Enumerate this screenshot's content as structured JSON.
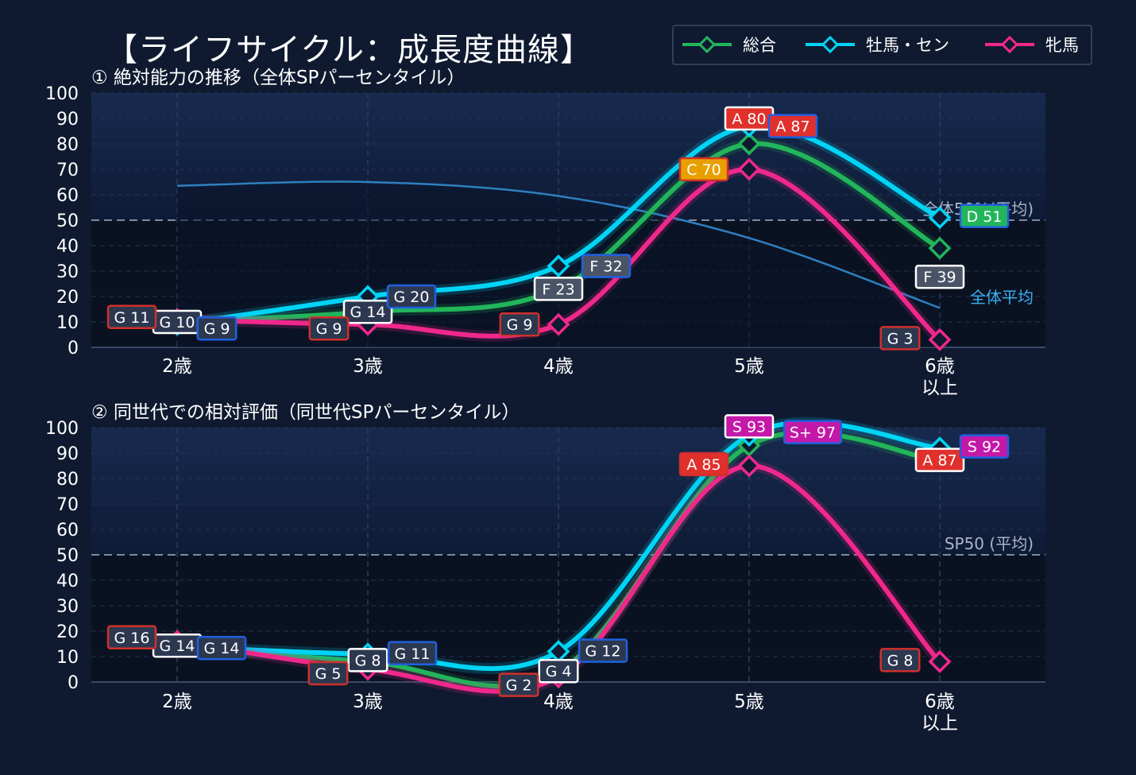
{
  "title": "【ライフサイクル：成長度曲線】",
  "legend": [
    {
      "name": "総合",
      "color": "#22b55a"
    },
    {
      "name": "牡馬・セン",
      "color": "#00d4f5"
    },
    {
      "name": "牝馬",
      "color": "#f0288c"
    }
  ],
  "chart_data": [
    {
      "type": "line",
      "title": "① 絶対能力の推移（全体SPパーセンタイル）",
      "categories": [
        "2歳",
        "3歳",
        "4歳",
        "5歳",
        "6歳\n以上"
      ],
      "ylim": [
        0,
        100
      ],
      "yticks": [
        0,
        10,
        20,
        30,
        40,
        50,
        60,
        70,
        80,
        90,
        100
      ],
      "grid": true,
      "legend_position": "top-right",
      "reference_line": {
        "y": 50,
        "label": "全体50%(平均)"
      },
      "baseline": {
        "label": "全体平均",
        "values": [
          63.5,
          65,
          59.5,
          43,
          15.5
        ]
      },
      "series": [
        {
          "name": "総合",
          "color": "#22b55a",
          "values": [
            10,
            14,
            23,
            80,
            39
          ],
          "labels": [
            "G 10",
            "G 14",
            "F 23",
            "A 80",
            "F 39"
          ]
        },
        {
          "name": "牡馬・セン",
          "color": "#00d4f5",
          "values": [
            9,
            20,
            32,
            87,
            51
          ],
          "labels": [
            "G 9",
            "G 20",
            "F 32",
            "A 87",
            "D 51"
          ]
        },
        {
          "name": "牝馬",
          "color": "#f0288c",
          "values": [
            11,
            9,
            9,
            70,
            3
          ],
          "labels": [
            "G 11",
            "G 9",
            "G 9",
            "C 70",
            "G 3"
          ]
        }
      ]
    },
    {
      "type": "line",
      "title": "② 同世代での相対評価（同世代SPパーセンタイル）",
      "categories": [
        "2歳",
        "3歳",
        "4歳",
        "5歳",
        "6歳\n以上"
      ],
      "ylim": [
        0,
        100
      ],
      "yticks": [
        0,
        10,
        20,
        30,
        40,
        50,
        60,
        70,
        80,
        90,
        100
      ],
      "grid": true,
      "reference_line": {
        "y": 50,
        "label": "SP50 (平均)"
      },
      "series": [
        {
          "name": "総合",
          "color": "#22b55a",
          "values": [
            14,
            8,
            4,
            93,
            87
          ],
          "labels": [
            "G 14",
            "G 8",
            "G 4",
            "S 93",
            "A 87"
          ]
        },
        {
          "name": "牡馬・セン",
          "color": "#00d4f5",
          "values": [
            14,
            11,
            12,
            97,
            92
          ],
          "labels": [
            "G 14",
            "G 11",
            "G 12",
            "S+ 97",
            "S 92"
          ]
        },
        {
          "name": "牝馬",
          "color": "#f0288c",
          "values": [
            16,
            5,
            2,
            85,
            8
          ],
          "labels": [
            "G 16",
            "G 5",
            "G 2",
            "A 85",
            "G 8"
          ]
        }
      ]
    }
  ]
}
